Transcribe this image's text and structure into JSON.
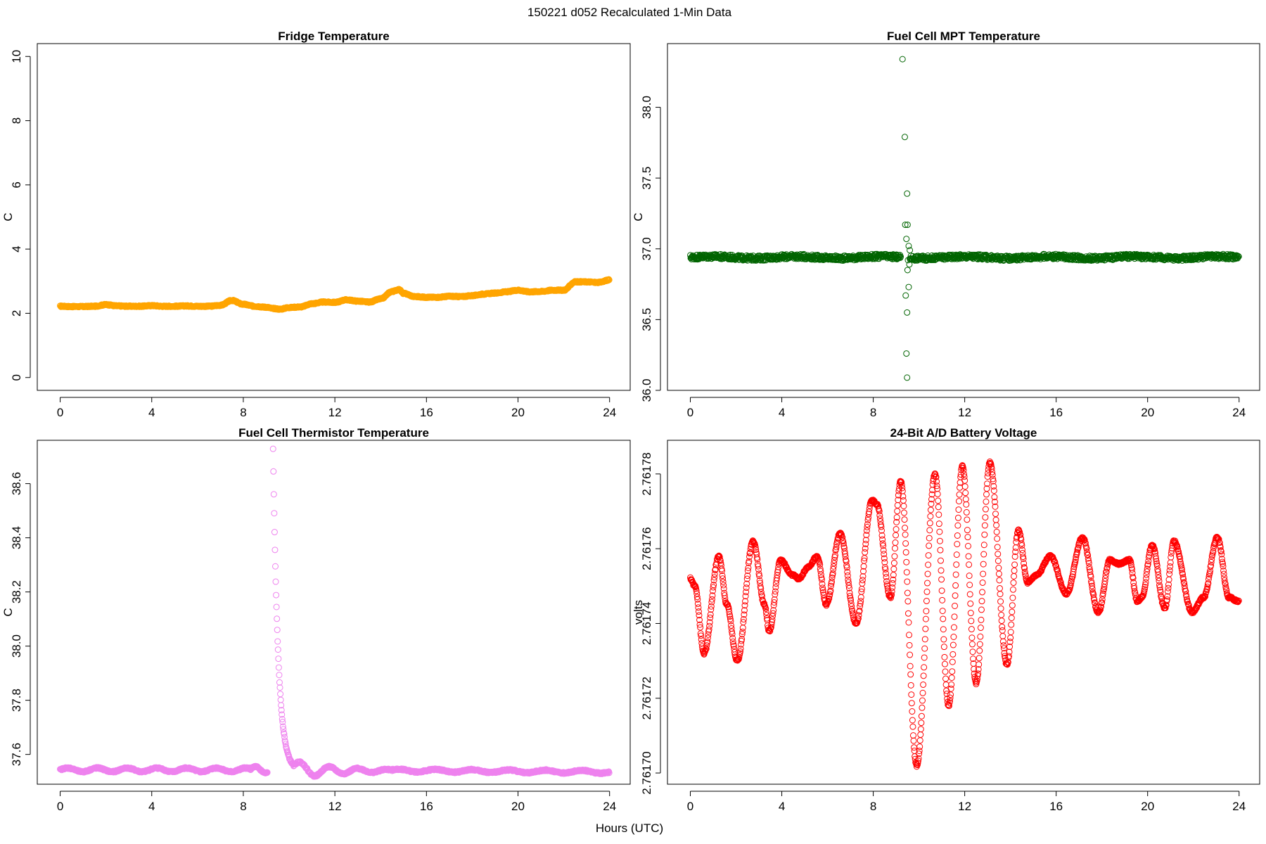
{
  "figure": {
    "suptitle": "150221   d052   Recalculated 1-Min Data",
    "xlabel": "Hours (UTC)"
  },
  "chart_data": [
    {
      "id": "fridge",
      "type": "scatter",
      "title": "Fridge Temperature",
      "xlabel": "",
      "ylabel": "C",
      "color": "#FFA500",
      "marker": "open-circle",
      "xlim": [
        -1,
        24.9
      ],
      "ylim": [
        -0.4,
        10.4
      ],
      "xticks": [
        0,
        4,
        8,
        12,
        16,
        20,
        24
      ],
      "yticks": [
        0,
        2,
        4,
        6,
        8,
        10
      ],
      "ytick_labels": [
        "0",
        "2",
        "4",
        "6",
        "8",
        "10"
      ],
      "keypoints": [
        [
          0,
          2.22
        ],
        [
          0.5,
          2.21
        ],
        [
          1,
          2.21
        ],
        [
          1.5,
          2.22
        ],
        [
          2,
          2.27
        ],
        [
          2.5,
          2.23
        ],
        [
          3,
          2.22
        ],
        [
          3.5,
          2.22
        ],
        [
          4,
          2.24
        ],
        [
          4.5,
          2.22
        ],
        [
          5,
          2.22
        ],
        [
          5.5,
          2.23
        ],
        [
          6,
          2.22
        ],
        [
          6.5,
          2.22
        ],
        [
          7,
          2.25
        ],
        [
          7.5,
          2.4
        ],
        [
          8,
          2.28
        ],
        [
          8.5,
          2.22
        ],
        [
          9,
          2.19
        ],
        [
          9.3,
          2.15
        ],
        [
          9.6,
          2.13
        ],
        [
          10,
          2.18
        ],
        [
          10.5,
          2.2
        ],
        [
          11,
          2.3
        ],
        [
          11.5,
          2.35
        ],
        [
          12,
          2.34
        ],
        [
          12.5,
          2.42
        ],
        [
          13,
          2.38
        ],
        [
          13.5,
          2.35
        ],
        [
          14,
          2.45
        ],
        [
          14.5,
          2.68
        ],
        [
          14.8,
          2.74
        ],
        [
          15,
          2.62
        ],
        [
          15.5,
          2.52
        ],
        [
          16,
          2.5
        ],
        [
          16.5,
          2.5
        ],
        [
          17,
          2.53
        ],
        [
          17.5,
          2.52
        ],
        [
          18,
          2.55
        ],
        [
          18.5,
          2.6
        ],
        [
          19,
          2.63
        ],
        [
          19.5,
          2.67
        ],
        [
          20,
          2.72
        ],
        [
          20.5,
          2.67
        ],
        [
          21,
          2.68
        ],
        [
          21.5,
          2.72
        ],
        [
          22,
          2.72
        ],
        [
          22.5,
          2.98
        ],
        [
          23,
          2.98
        ],
        [
          23.5,
          2.96
        ],
        [
          24,
          3.04
        ]
      ]
    },
    {
      "id": "mpt",
      "type": "scatter",
      "title": "Fuel Cell MPT Temperature",
      "xlabel": "",
      "ylabel": "C",
      "color": "#006400",
      "marker": "open-circle",
      "xlim": [
        -1,
        24.9
      ],
      "ylim": [
        36.0,
        38.45
      ],
      "xticks": [
        0,
        4,
        8,
        12,
        16,
        20,
        24
      ],
      "yticks": [
        36.0,
        36.5,
        37.0,
        37.5,
        38.0
      ],
      "ytick_labels": [
        "36.0",
        "36.5",
        "37.0",
        "37.5",
        "38.0"
      ],
      "baseline": 36.94,
      "outliers": [
        [
          9.28,
          38.34
        ],
        [
          9.38,
          37.79
        ],
        [
          9.48,
          37.39
        ],
        [
          9.4,
          37.17
        ],
        [
          9.5,
          37.17
        ],
        [
          9.45,
          37.07
        ],
        [
          9.55,
          37.02
        ],
        [
          9.6,
          36.99
        ],
        [
          9.52,
          36.92
        ],
        [
          9.58,
          36.89
        ],
        [
          9.5,
          36.85
        ],
        [
          9.55,
          36.73
        ],
        [
          9.42,
          36.67
        ],
        [
          9.48,
          36.55
        ],
        [
          9.45,
          36.26
        ],
        [
          9.48,
          36.09
        ]
      ]
    },
    {
      "id": "thermistor",
      "type": "scatter",
      "title": "Fuel Cell Thermistor Temperature",
      "xlabel": "",
      "ylabel": "C",
      "color": "#EE82EE",
      "marker": "open-circle",
      "xlim": [
        -1,
        24.9
      ],
      "ylim": [
        37.49,
        38.76
      ],
      "xticks": [
        0,
        4,
        8,
        12,
        16,
        20,
        24
      ],
      "yticks": [
        37.6,
        37.8,
        38.0,
        38.2,
        38.4,
        38.6
      ],
      "ytick_labels": [
        "37.6",
        "37.8",
        "38.0",
        "38.2",
        "38.4",
        "38.6"
      ],
      "spike_start": 9.3,
      "spike_peak": 38.73
    },
    {
      "id": "battery",
      "type": "scatter",
      "title": "24-Bit A/D Battery Voltage",
      "xlabel": "",
      "ylabel": "volts",
      "color": "#FF0000",
      "marker": "open-circle",
      "xlim": [
        -1,
        24.9
      ],
      "ylim": [
        2.761697,
        2.761789
      ],
      "xticks": [
        0,
        4,
        8,
        12,
        16,
        20,
        24
      ],
      "yticks": [
        2.7617,
        2.76172,
        2.76174,
        2.76176,
        2.76178
      ],
      "ytick_labels": [
        "2.76170",
        "2.76172",
        "2.76174",
        "2.76176",
        "2.76178"
      ],
      "keypoints": [
        [
          0,
          2.761752
        ],
        [
          0.2,
          2.76175
        ],
        [
          0.6,
          2.761732
        ],
        [
          1.25,
          2.761758
        ],
        [
          1.6,
          2.761745
        ],
        [
          2.05,
          2.76173
        ],
        [
          2.75,
          2.761762
        ],
        [
          3.25,
          2.761745
        ],
        [
          3.45,
          2.761738
        ],
        [
          3.95,
          2.761757
        ],
        [
          4.45,
          2.761753
        ],
        [
          4.75,
          2.761752
        ],
        [
          5.15,
          2.761755
        ],
        [
          5.55,
          2.761758
        ],
        [
          5.95,
          2.761745
        ],
        [
          6.55,
          2.761764
        ],
        [
          7.25,
          2.76174
        ],
        [
          7.95,
          2.761773
        ],
        [
          8.15,
          2.761772
        ],
        [
          8.75,
          2.761747
        ],
        [
          9.2,
          2.761778
        ],
        [
          9.9,
          2.761702
        ],
        [
          10.7,
          2.76178
        ],
        [
          11.3,
          2.761718
        ],
        [
          11.9,
          2.761782
        ],
        [
          12.5,
          2.761724
        ],
        [
          13.1,
          2.761783
        ],
        [
          13.85,
          2.761729
        ],
        [
          14.35,
          2.761765
        ],
        [
          14.75,
          2.761751
        ],
        [
          15.15,
          2.761753
        ],
        [
          15.75,
          2.761758
        ],
        [
          16.45,
          2.761748
        ],
        [
          17.15,
          2.761763
        ],
        [
          17.85,
          2.761743
        ],
        [
          18.35,
          2.761757
        ],
        [
          18.75,
          2.761756
        ],
        [
          19.2,
          2.761757
        ],
        [
          19.55,
          2.761746
        ],
        [
          19.75,
          2.761747
        ],
        [
          20.2,
          2.761761
        ],
        [
          20.75,
          2.761744
        ],
        [
          21.15,
          2.761762
        ],
        [
          21.95,
          2.761743
        ],
        [
          22.45,
          2.761747
        ],
        [
          23.05,
          2.761763
        ],
        [
          23.55,
          2.761747
        ],
        [
          23.95,
          2.761746
        ]
      ]
    }
  ]
}
